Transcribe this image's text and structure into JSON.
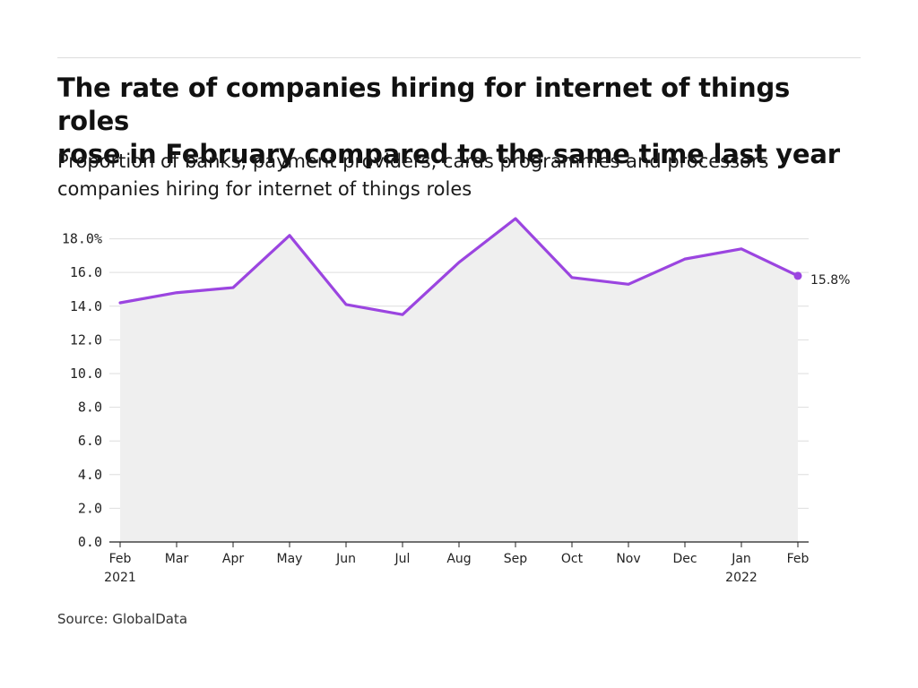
{
  "header": {
    "title_line1": "The rate of companies hiring for internet of things roles",
    "title_line2": "rose in February compared to the same time last year",
    "subtitle_line1": "Proportion of banks, payment providers, cards programmes and processors",
    "subtitle_line2": "companies hiring for internet of things roles"
  },
  "footer": {
    "source": "Source: GlobalData"
  },
  "colors": {
    "line": "#9b45e0",
    "area": "#efefef",
    "grid": "#dedede",
    "axis": "#222222"
  },
  "chart_data": {
    "type": "area",
    "title": "The rate of companies hiring for internet of things roles rose in February compared to the same time last year",
    "subtitle": "Proportion of banks, payment providers, cards programmes and processors companies hiring for internet of things roles",
    "categories": [
      "Feb",
      "Mar",
      "Apr",
      "May",
      "Jun",
      "Jul",
      "Aug",
      "Sep",
      "Oct",
      "Nov",
      "Dec",
      "Jan",
      "Feb"
    ],
    "year_labels": [
      "2021",
      "",
      "",
      "",
      "",
      "",
      "",
      "",
      "",
      "",
      "",
      "2022",
      ""
    ],
    "values": [
      14.2,
      14.8,
      15.1,
      18.2,
      14.1,
      13.5,
      16.6,
      19.2,
      15.7,
      15.3,
      16.8,
      17.4,
      15.8
    ],
    "yticks": [
      "0.0",
      "2.0",
      "4.0",
      "6.0",
      "8.0",
      "10.0",
      "12.0",
      "14.0",
      "16.0",
      "18.0%"
    ],
    "ytick_values": [
      0,
      2,
      4,
      6,
      8,
      10,
      12,
      14,
      16,
      18
    ],
    "ylim": [
      0,
      19.2
    ],
    "end_label": "15.8%",
    "xlabel": "",
    "ylabel": "",
    "grid": true,
    "legend": "none"
  }
}
